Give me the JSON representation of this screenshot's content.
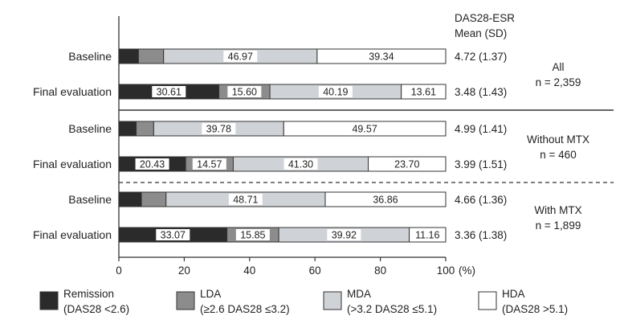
{
  "chart_data": {
    "type": "bar",
    "orientation": "horizontal",
    "stacked": true,
    "categories": [
      "Baseline",
      "Final evaluation",
      "Baseline",
      "Final evaluation",
      "Baseline",
      "Final evaluation"
    ],
    "groups": [
      {
        "label": "All",
        "n_label": "n = 2,359",
        "rows": [
          0,
          1
        ]
      },
      {
        "label": "Without MTX",
        "n_label": "n = 460",
        "rows": [
          2,
          3
        ]
      },
      {
        "label": "With MTX",
        "n_label": "n = 1,899",
        "rows": [
          4,
          5
        ]
      }
    ],
    "series": [
      {
        "name": "Remission",
        "legend_sub": "(DAS28 <2.6)",
        "color": "#2b2b2b",
        "values": [
          6.0,
          30.61,
          5.3,
          20.43,
          6.9,
          33.07
        ],
        "labels": [
          "",
          "30.61",
          "",
          "20.43",
          "",
          "33.07"
        ]
      },
      {
        "name": "LDA",
        "legend_sub": "(≥2.6 DAS28 ≤3.2)",
        "color": "#8c8c8c",
        "values": [
          7.69,
          15.6,
          5.35,
          14.57,
          7.53,
          15.85
        ],
        "labels": [
          "",
          "15.60",
          "",
          "14.57",
          "",
          "15.85"
        ]
      },
      {
        "name": "MDA",
        "legend_sub": "(>3.2 DAS28 ≤5.1)",
        "color": "#cfd2d6",
        "values": [
          46.97,
          40.19,
          39.78,
          41.3,
          48.71,
          39.92
        ],
        "labels": [
          "46.97",
          "40.19",
          "39.78",
          "41.30",
          "48.71",
          "39.92"
        ]
      },
      {
        "name": "HDA",
        "legend_sub": "(DAS28 >5.1)",
        "color": "#ffffff",
        "values": [
          39.34,
          13.61,
          49.57,
          23.7,
          36.86,
          11.16
        ],
        "labels": [
          "39.34",
          "13.61",
          "49.57",
          "23.70",
          "36.86",
          "11.16"
        ]
      }
    ],
    "das28_header": [
      "DAS28-ESR",
      "Mean (SD)"
    ],
    "das28_values": [
      "4.72 (1.37)",
      "3.48 (1.43)",
      "4.99 (1.41)",
      "3.99 (1.51)",
      "4.66 (1.36)",
      "3.36 (1.38)"
    ],
    "xlim": [
      0,
      100
    ],
    "xticks": [
      "0",
      "20",
      "40",
      "60",
      "80",
      "100"
    ],
    "xunit": "(%)",
    "legend_position": "bottom"
  }
}
